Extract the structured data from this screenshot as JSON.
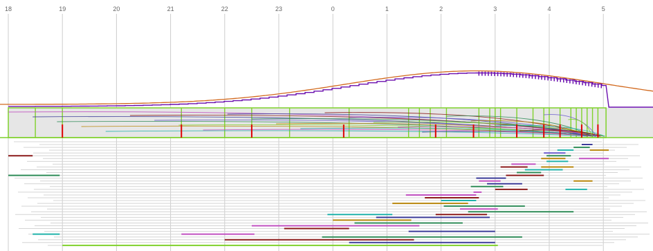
{
  "chart_data": {
    "type": "timeline",
    "x_unit": "hour",
    "x_ticks": [
      "18",
      "19",
      "20",
      "21",
      "22",
      "23",
      "0",
      "1",
      "2",
      "3",
      "4",
      "5"
    ],
    "x_range": [
      17.9,
      6.0
    ],
    "colors": {
      "curve": "#d2691e",
      "step_line": "#6a0dad",
      "band_outline": "#7fd12b",
      "band_fill": "#e6e6e6",
      "marker": "#dd0000",
      "grid": "#cccccc",
      "row_line": "#d4d4d4"
    },
    "curve": {
      "peak_hour": 2.65,
      "peak_level": 0.97,
      "sigma_hours": 2.4,
      "baseline": 0.0
    },
    "band": {
      "start": 18.0,
      "end": 5.05,
      "spike_times": [
        18.5,
        19.0,
        21.2,
        22.0,
        22.5,
        23.2,
        0.3,
        1.4,
        1.6,
        1.8,
        2.1,
        2.7,
        2.9,
        3.0,
        3.1,
        3.4,
        3.7,
        3.9,
        4.0,
        4.2,
        4.4,
        4.5,
        4.6,
        4.7,
        4.8,
        4.9
      ]
    },
    "red_markers": [
      19.0,
      21.2,
      22.5,
      0.2,
      1.9,
      2.6,
      3.4,
      3.9,
      4.2,
      4.6,
      4.9
    ],
    "segments": [
      {
        "start": 4.6,
        "end": 4.8,
        "row": 1,
        "color": "#3b3b98"
      },
      {
        "start": 4.45,
        "end": 4.75,
        "row": 2,
        "color": "#2e8b57"
      },
      {
        "start": 4.15,
        "end": 4.45,
        "row": 3,
        "color": "#20b2aa"
      },
      {
        "start": 4.75,
        "end": 5.1,
        "row": 3,
        "color": "#b8860b"
      },
      {
        "start": 3.9,
        "end": 4.3,
        "row": 4,
        "color": "#6a5acd"
      },
      {
        "start": 3.95,
        "end": 4.4,
        "row": 5,
        "color": "#2e8b57"
      },
      {
        "start": 18.0,
        "end": 18.45,
        "row": 5,
        "color": "#8b1a1a"
      },
      {
        "start": 3.85,
        "end": 4.3,
        "row": 6,
        "color": "#b8860b"
      },
      {
        "start": 4.55,
        "end": 5.1,
        "row": 6,
        "color": "#c050c0"
      },
      {
        "start": 3.95,
        "end": 4.35,
        "row": 7,
        "color": "#20b2aa"
      },
      {
        "start": 3.3,
        "end": 3.75,
        "row": 8,
        "color": "#c050c0"
      },
      {
        "start": 3.1,
        "end": 3.6,
        "row": 9,
        "color": "#8b1a1a"
      },
      {
        "start": 3.85,
        "end": 4.45,
        "row": 9,
        "color": "#b8860b"
      },
      {
        "start": 3.55,
        "end": 4.25,
        "row": 10,
        "color": "#20b2aa"
      },
      {
        "start": 3.4,
        "end": 3.85,
        "row": 11,
        "color": "#2e8b57"
      },
      {
        "start": 18.0,
        "end": 18.95,
        "row": 12,
        "color": "#2e8b57"
      },
      {
        "start": 3.2,
        "end": 3.9,
        "row": 12,
        "color": "#8b1a1a"
      },
      {
        "start": 2.65,
        "end": 3.2,
        "row": 13,
        "color": "#3b3b98"
      },
      {
        "start": 4.45,
        "end": 4.8,
        "row": 14,
        "color": "#b8860b"
      },
      {
        "start": 2.7,
        "end": 3.1,
        "row": 14,
        "color": "#c050c0"
      },
      {
        "start": 2.85,
        "end": 3.5,
        "row": 15,
        "color": "#3b3b98"
      },
      {
        "start": 2.55,
        "end": 3.15,
        "row": 16,
        "color": "#2e8b57"
      },
      {
        "start": 3.0,
        "end": 3.6,
        "row": 17,
        "color": "#8b1a1a"
      },
      {
        "start": 4.3,
        "end": 4.7,
        "row": 17,
        "color": "#20b2aa"
      },
      {
        "start": 2.6,
        "end": 2.75,
        "row": 18,
        "color": "#c050c0"
      },
      {
        "start": 1.35,
        "end": 2.65,
        "row": 19,
        "color": "#c050c0"
      },
      {
        "start": 1.7,
        "end": 2.7,
        "row": 20,
        "color": "#8b1a1a"
      },
      {
        "start": 2.0,
        "end": 2.65,
        "row": 21,
        "color": "#20b2aa"
      },
      {
        "start": 1.1,
        "end": 2.5,
        "row": 22,
        "color": "#b8860b"
      },
      {
        "start": 2.05,
        "end": 3.55,
        "row": 23,
        "color": "#2e8b57"
      },
      {
        "start": 2.35,
        "end": 3.05,
        "row": 24,
        "color": "#c050c0"
      },
      {
        "start": 2.5,
        "end": 4.45,
        "row": 25,
        "color": "#2e8b57"
      },
      {
        "start": 23.9,
        "end": 1.1,
        "row": 26,
        "color": "#20b2aa"
      },
      {
        "start": 1.9,
        "end": 2.85,
        "row": 26,
        "color": "#8b1a1a"
      },
      {
        "start": 0.8,
        "end": 2.9,
        "row": 27,
        "color": "#3b3b98"
      },
      {
        "start": 0.0,
        "end": 1.45,
        "row": 28,
        "color": "#b8860b"
      },
      {
        "start": 0.4,
        "end": 2.4,
        "row": 29,
        "color": "#2e8b57"
      },
      {
        "start": 22.5,
        "end": 1.6,
        "row": 30,
        "color": "#c050c0"
      },
      {
        "start": 23.1,
        "end": 0.3,
        "row": 31,
        "color": "#8b1a1a"
      },
      {
        "start": 1.4,
        "end": 3.0,
        "row": 32,
        "color": "#3b3b98"
      },
      {
        "start": 18.45,
        "end": 18.95,
        "row": 33,
        "color": "#20b2aa"
      },
      {
        "start": 21.2,
        "end": 22.55,
        "row": 33,
        "color": "#c050c0"
      },
      {
        "start": 23.8,
        "end": 3.5,
        "row": 34,
        "color": "#2e8b57"
      },
      {
        "start": 22.0,
        "end": 1.5,
        "row": 35,
        "color": "#8b1a1a"
      },
      {
        "start": 0.3,
        "end": 3.0,
        "row": 36,
        "color": "#3b3b98"
      },
      {
        "start": 19.0,
        "end": 3.05,
        "row": 37,
        "color": "#7fd12b"
      }
    ]
  }
}
